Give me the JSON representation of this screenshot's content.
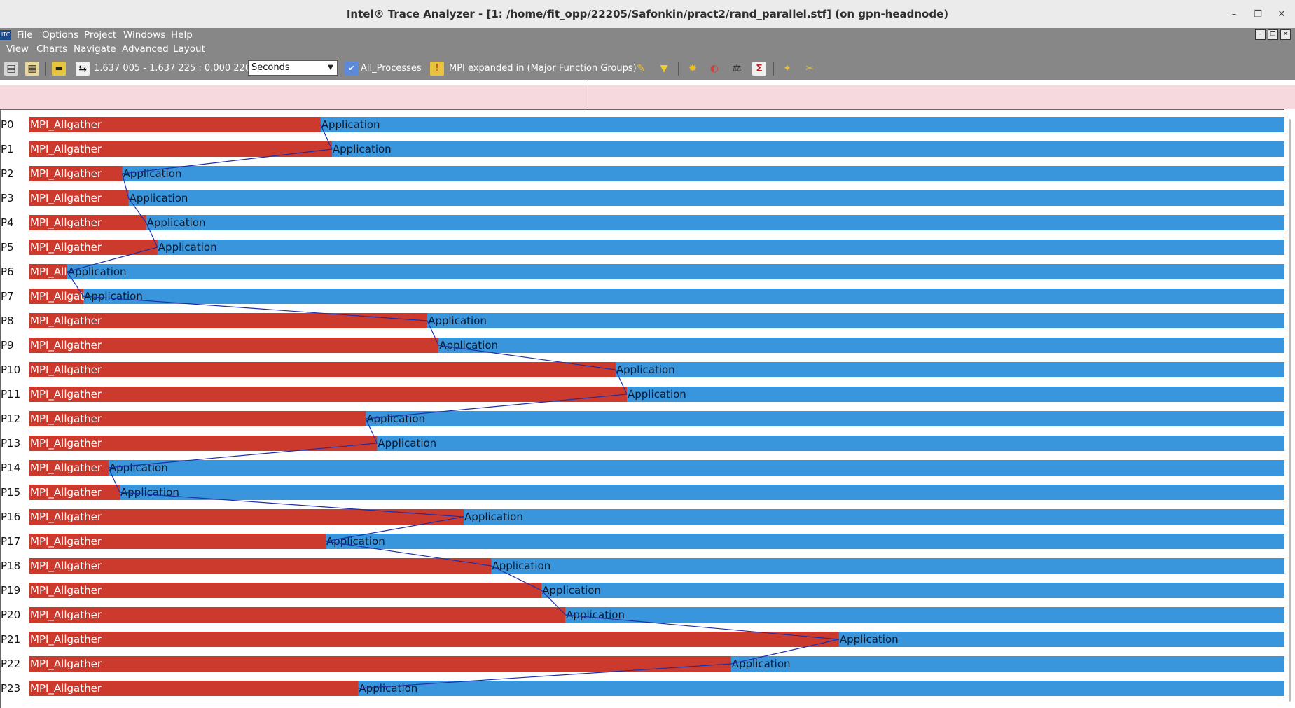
{
  "window": {
    "title": "Intel® Trace Analyzer - [1: /home/fit_opp/22205/Safonkin/pract2/rand_parallel.stf] (on gpn-headnode)",
    "minimize": "–",
    "restore": "❐",
    "close": "✕"
  },
  "menu_top": [
    "File",
    "Options",
    "Project",
    "Windows",
    "Help"
  ],
  "menu_bottom": [
    "View",
    "Charts",
    "Navigate",
    "Advanced",
    "Layout"
  ],
  "app_logo": "ITC",
  "toolbar": {
    "time_range": "1.637 005 - 1.637 225 : 0.000 220",
    "units": "Seconds",
    "process_group": "All_Processes",
    "function_group": "MPI expanded in (Major Function Groups)"
  },
  "colors": {
    "mpi": "#cc3a2e",
    "application": "#3995dc",
    "message_line": "#1f2fa8"
  },
  "chart_data": {
    "type": "timeline",
    "time_range": [
      1.637005,
      1.637225
    ],
    "function_label_mpi": "MPI_Allgather",
    "function_label_app": "Application",
    "processes": [
      {
        "name": "P0",
        "mpi_end": 0.232,
        "label": "MPI_Allgather"
      },
      {
        "name": "P1",
        "mpi_end": 0.241,
        "label": "MPI_Allgather"
      },
      {
        "name": "P2",
        "mpi_end": 0.074,
        "label": "MPI_Allgather"
      },
      {
        "name": "P3",
        "mpi_end": 0.079,
        "label": "MPI_Allgather"
      },
      {
        "name": "P4",
        "mpi_end": 0.093,
        "label": "MPI_Allgather"
      },
      {
        "name": "P5",
        "mpi_end": 0.102,
        "label": "MPI_Allgather"
      },
      {
        "name": "P6",
        "mpi_end": 0.03,
        "label": "MPI_All"
      },
      {
        "name": "P7",
        "mpi_end": 0.043,
        "label": "MPI_Allgat"
      },
      {
        "name": "P8",
        "mpi_end": 0.317,
        "label": "MPI_Allgather"
      },
      {
        "name": "P9",
        "mpi_end": 0.326,
        "label": "MPI_Allgather"
      },
      {
        "name": "P10",
        "mpi_end": 0.467,
        "label": "MPI_Allgather"
      },
      {
        "name": "P11",
        "mpi_end": 0.476,
        "label": "MPI_Allgather"
      },
      {
        "name": "P12",
        "mpi_end": 0.268,
        "label": "MPI_Allgather"
      },
      {
        "name": "P13",
        "mpi_end": 0.277,
        "label": "MPI_Allgather"
      },
      {
        "name": "P14",
        "mpi_end": 0.063,
        "label": "MPI_Allgather"
      },
      {
        "name": "P15",
        "mpi_end": 0.072,
        "label": "MPI_Allgather"
      },
      {
        "name": "P16",
        "mpi_end": 0.346,
        "label": "MPI_Allgather"
      },
      {
        "name": "P17",
        "mpi_end": 0.236,
        "label": "MPI_Allgather"
      },
      {
        "name": "P18",
        "mpi_end": 0.368,
        "label": "MPI_Allgather"
      },
      {
        "name": "P19",
        "mpi_end": 0.408,
        "label": "MPI_Allgather"
      },
      {
        "name": "P20",
        "mpi_end": 0.427,
        "label": "MPI_Allgather"
      },
      {
        "name": "P21",
        "mpi_end": 0.645,
        "label": "MPI_Allgather"
      },
      {
        "name": "P22",
        "mpi_end": 0.559,
        "label": "MPI_Allgather"
      },
      {
        "name": "P23",
        "mpi_end": 0.262,
        "label": "MPI_Allgather"
      }
    ],
    "messages": [
      [
        0,
        1
      ],
      [
        1,
        2
      ],
      [
        2,
        3
      ],
      [
        3,
        4
      ],
      [
        4,
        5
      ],
      [
        5,
        6
      ],
      [
        6,
        7
      ],
      [
        7,
        8
      ],
      [
        8,
        9
      ],
      [
        9,
        10
      ],
      [
        10,
        11
      ],
      [
        11,
        12
      ],
      [
        12,
        13
      ],
      [
        13,
        14
      ],
      [
        14,
        15
      ],
      [
        15,
        16
      ],
      [
        16,
        17
      ],
      [
        17,
        18
      ],
      [
        18,
        19
      ],
      [
        19,
        20
      ],
      [
        20,
        21
      ],
      [
        21,
        22
      ],
      [
        22,
        23
      ]
    ]
  }
}
